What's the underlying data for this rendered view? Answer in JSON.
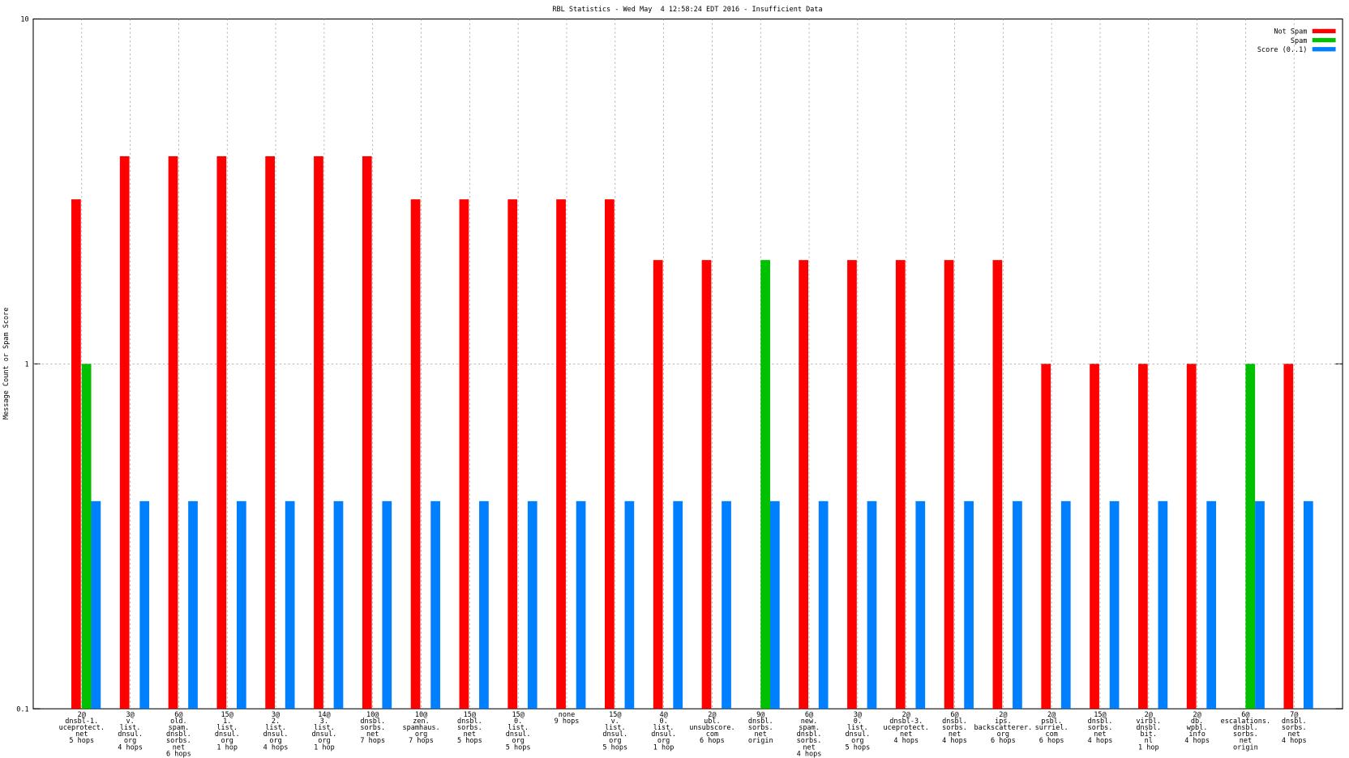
{
  "chart_data": {
    "type": "bar",
    "title": "RBL Statistics - Wed May  4 12:58:24 EDT 2016 - Insufficient Data",
    "y_label": "Message Count or Spam Score",
    "log_scale_y": true,
    "grid": true,
    "legend_position": "top-right",
    "ylim": [
      0.1,
      10
    ],
    "yticks": [
      0.1,
      1,
      10
    ],
    "categories": [
      [
        "2@",
        "dnsbl-1.",
        "uceprotect.",
        "net",
        "5 hops"
      ],
      [
        "3@",
        "v.",
        "list.",
        "dnsul.",
        "org",
        "4 hops"
      ],
      [
        "6@",
        "old.",
        "spam.",
        "dnsbl.",
        "sorbs.",
        "net",
        "6 hops"
      ],
      [
        "15@",
        "1.",
        "list.",
        "dnsul.",
        "org",
        "1 hop"
      ],
      [
        "3@",
        "2.",
        "list.",
        "dnsul.",
        "org",
        "4 hops"
      ],
      [
        "14@",
        "3.",
        "list.",
        "dnsul.",
        "org",
        "1 hop"
      ],
      [
        "10@",
        "dnsbl.",
        "sorbs.",
        "net",
        "7 hops"
      ],
      [
        "10@",
        "zen.",
        "spamhaus.",
        "org",
        "7 hops"
      ],
      [
        "15@",
        "dnsbl.",
        "sorbs.",
        "net",
        "5 hops"
      ],
      [
        "15@",
        "0.",
        "list.",
        "dnsul.",
        "org",
        "5 hops"
      ],
      [
        "none",
        "9 hops"
      ],
      [
        "15@",
        "v.",
        "list.",
        "dnsul.",
        "org",
        "5 hops"
      ],
      [
        "4@",
        "0.",
        "list.",
        "dnsul.",
        "org",
        "1 hop"
      ],
      [
        "2@",
        "ubl.",
        "unsubscore.",
        "com",
        "6 hops"
      ],
      [
        "9@",
        "dnsbl.",
        "sorbs.",
        "net",
        "origin"
      ],
      [
        "6@",
        "new.",
        "spam.",
        "dnsbl.",
        "sorbs.",
        "net",
        "4 hops"
      ],
      [
        "3@",
        "0.",
        "list.",
        "dnsul.",
        "org",
        "5 hops"
      ],
      [
        "2@",
        "dnsbl-3.",
        "uceprotect.",
        "net",
        "4 hops"
      ],
      [
        "6@",
        "dnsbl.",
        "sorbs.",
        "net",
        "4 hops"
      ],
      [
        "2@",
        "ips.",
        "backscatterer.",
        "org",
        "6 hops"
      ],
      [
        "2@",
        "psbl.",
        "surriel.",
        "com",
        "6 hops"
      ],
      [
        "15@",
        "dnsbl.",
        "sorbs.",
        "net",
        "4 hops"
      ],
      [
        "2@",
        "virbl.",
        "dnsbl.",
        "bit.",
        "nl",
        "1 hop"
      ],
      [
        "2@",
        "db.",
        "wpbl.",
        "info",
        "4 hops"
      ],
      [
        "6@",
        "escalations.",
        "dnsbl.",
        "sorbs.",
        "net",
        "origin"
      ],
      [
        "7@",
        "dnsbl.",
        "sorbs.",
        "net",
        "4 hops"
      ]
    ],
    "series": [
      {
        "name": "Not Spam",
        "color": "#ff0000",
        "values": [
          3,
          4,
          4,
          4,
          4,
          4,
          4,
          3,
          3,
          3,
          3,
          3,
          2,
          2,
          null,
          2,
          2,
          2,
          2,
          2,
          1,
          1,
          1,
          1,
          null,
          1
        ]
      },
      {
        "name": "Spam",
        "color": "#00c000",
        "values": [
          1,
          null,
          null,
          null,
          null,
          null,
          null,
          null,
          null,
          null,
          null,
          null,
          null,
          null,
          2,
          null,
          null,
          null,
          null,
          null,
          null,
          null,
          null,
          null,
          1,
          null
        ]
      },
      {
        "name": "Score (0..1)",
        "color": "#0080ff",
        "values": [
          0.4,
          0.4,
          0.4,
          0.4,
          0.4,
          0.4,
          0.4,
          0.4,
          0.4,
          0.4,
          0.4,
          0.4,
          0.4,
          0.4,
          0.4,
          0.4,
          0.4,
          0.4,
          0.4,
          0.4,
          0.4,
          0.4,
          0.4,
          0.4,
          0.4,
          0.4
        ]
      }
    ]
  }
}
